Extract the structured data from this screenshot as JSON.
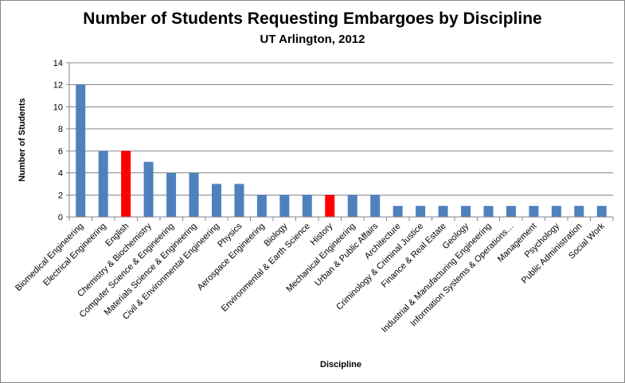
{
  "chart_data": {
    "type": "bar",
    "title": "Number of Students Requesting Embargoes by Discipline",
    "subtitle": "UT Arlington, 2012",
    "xlabel": "Discipline",
    "ylabel": "Number of Students",
    "ylim": [
      0,
      14
    ],
    "yticks": [
      0,
      2,
      4,
      6,
      8,
      10,
      12,
      14
    ],
    "grid": true,
    "legend": "none",
    "categories": [
      "Biomedical Engineering",
      "Electrical Engineering",
      "English",
      "Chemistry & Biochemistry",
      "Computer Science & Engineering",
      "Materials Science & Engineering",
      "Civil & Environmental Engineering",
      "Physics",
      "Aerospace Engineering",
      "Biology",
      "Environmental & Earth Science",
      "History",
      "Mechanical Engineering",
      "Urban & Public Affairs",
      "Architecture",
      "Criminology & Criminal Justice",
      "Finance & Real Estate",
      "Geology",
      "Industrial & Manufacturing Engineering",
      "Information Systems & Operations…",
      "Management",
      "Psychology",
      "Public Administration",
      "Social Work"
    ],
    "values": [
      12,
      6,
      6,
      5,
      4,
      4,
      3,
      3,
      2,
      2,
      2,
      2,
      2,
      2,
      1,
      1,
      1,
      1,
      1,
      1,
      1,
      1,
      1,
      1
    ],
    "highlighted": [
      "English",
      "History"
    ],
    "colors": {
      "bar": "#4f81bd",
      "highlight": "#ff0000",
      "grid": "#868686",
      "axis": "#868686"
    }
  }
}
